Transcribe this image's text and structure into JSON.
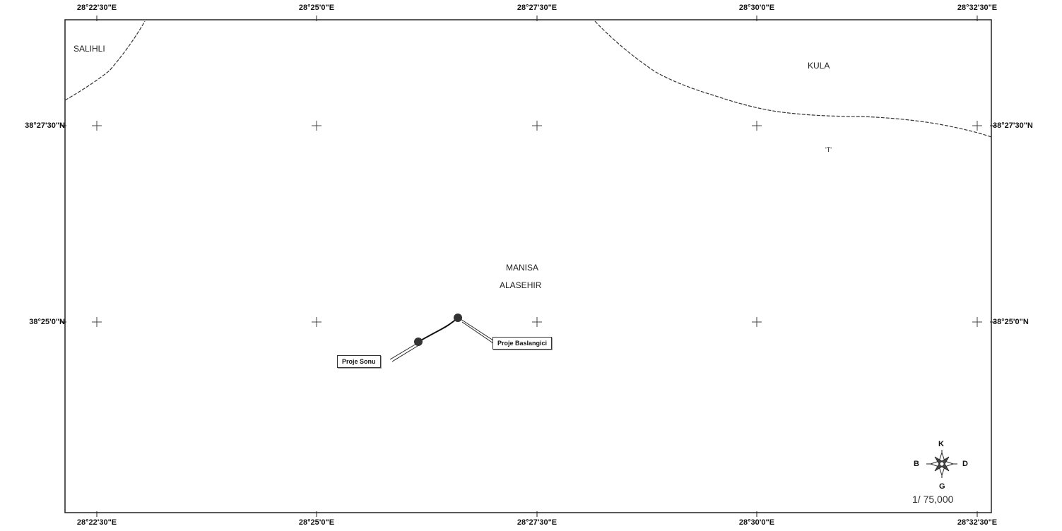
{
  "longitude_labels": [
    "28°22'30\"E",
    "28°25'0\"E",
    "28°27'30\"E",
    "28°30'0\"E",
    "28°32'30\"E"
  ],
  "latitude_labels": [
    "38°27'30\"N",
    "38°25'0\"N"
  ],
  "places": {
    "salihli": "SALIHLI",
    "kula": "KULA",
    "manisa": "MANISA",
    "alasehir": "ALASEHIR"
  },
  "project": {
    "end_label": "Proje Sonu",
    "start_label": "Proje Baslangici"
  },
  "compass": {
    "north": "K",
    "south": "G",
    "west": "B",
    "east": "D"
  },
  "scale": "1/ 75,000",
  "stray_mark": "'T'"
}
